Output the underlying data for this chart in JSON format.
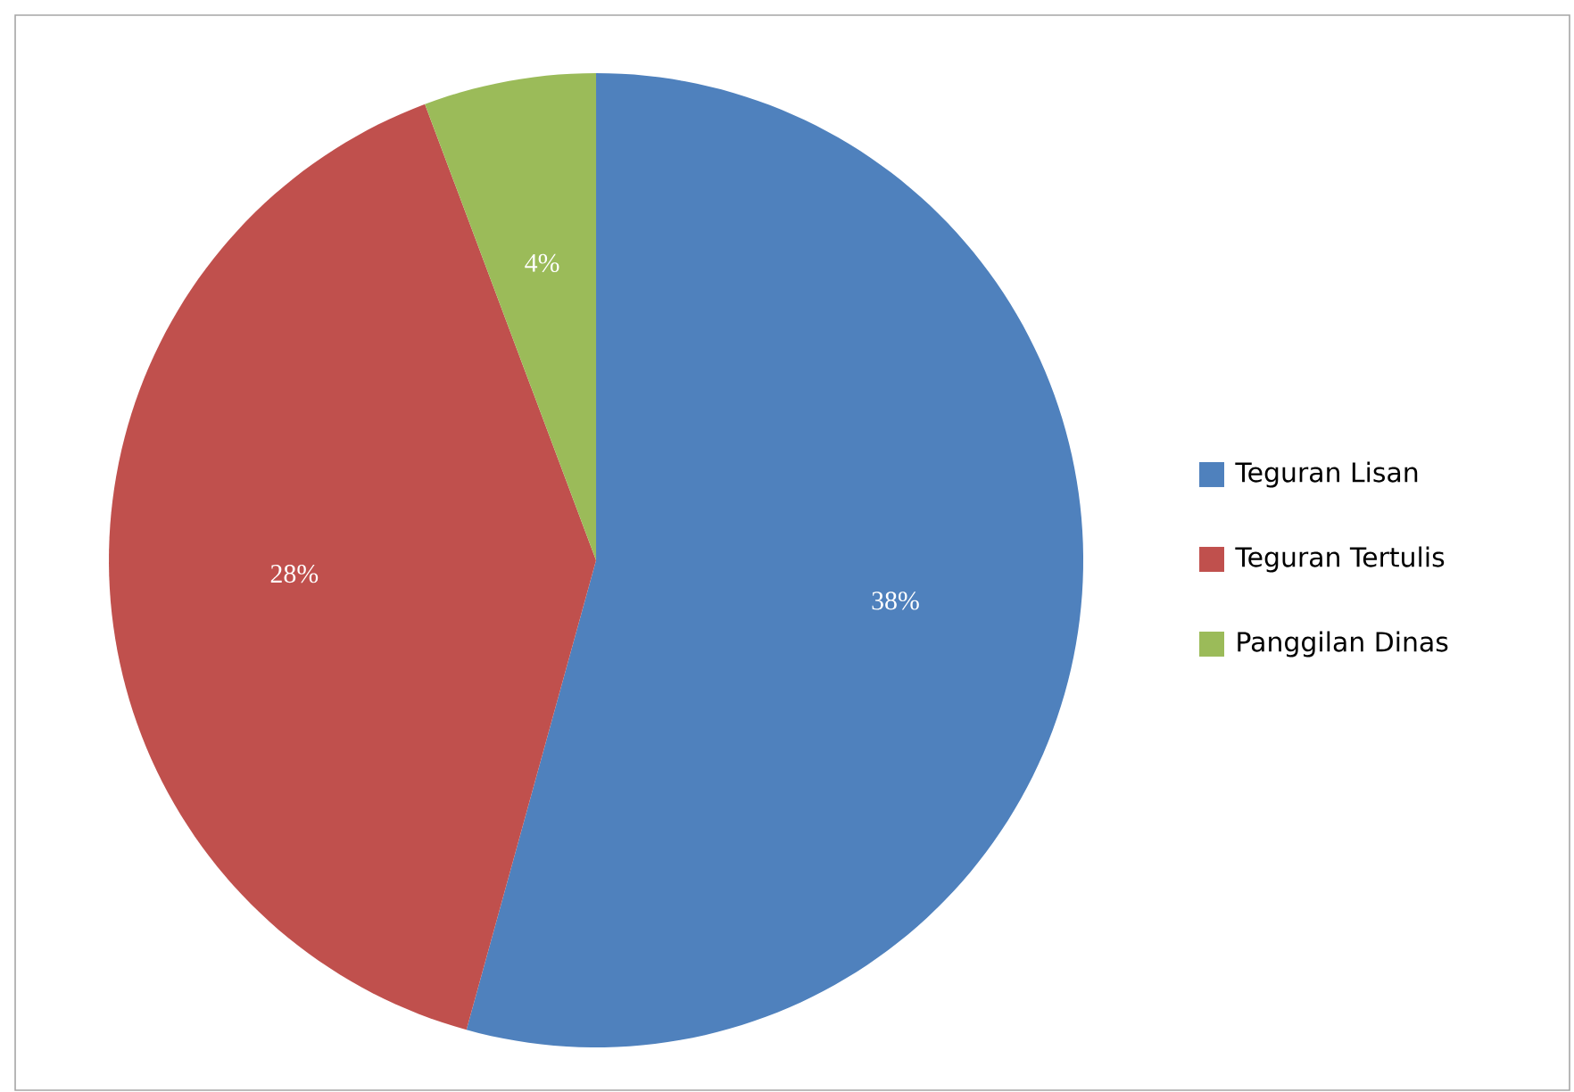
{
  "chart_data": {
    "type": "pie",
    "categories": [
      "Teguran Lisan",
      "Teguran Tertulis",
      "Panggilan Dinas"
    ],
    "values": [
      38,
      28,
      4
    ],
    "colors": [
      "#4f81bd",
      "#c0504d",
      "#9bbb59"
    ],
    "value_labels": [
      "38%",
      "28%",
      "4%"
    ],
    "legend": "right"
  }
}
